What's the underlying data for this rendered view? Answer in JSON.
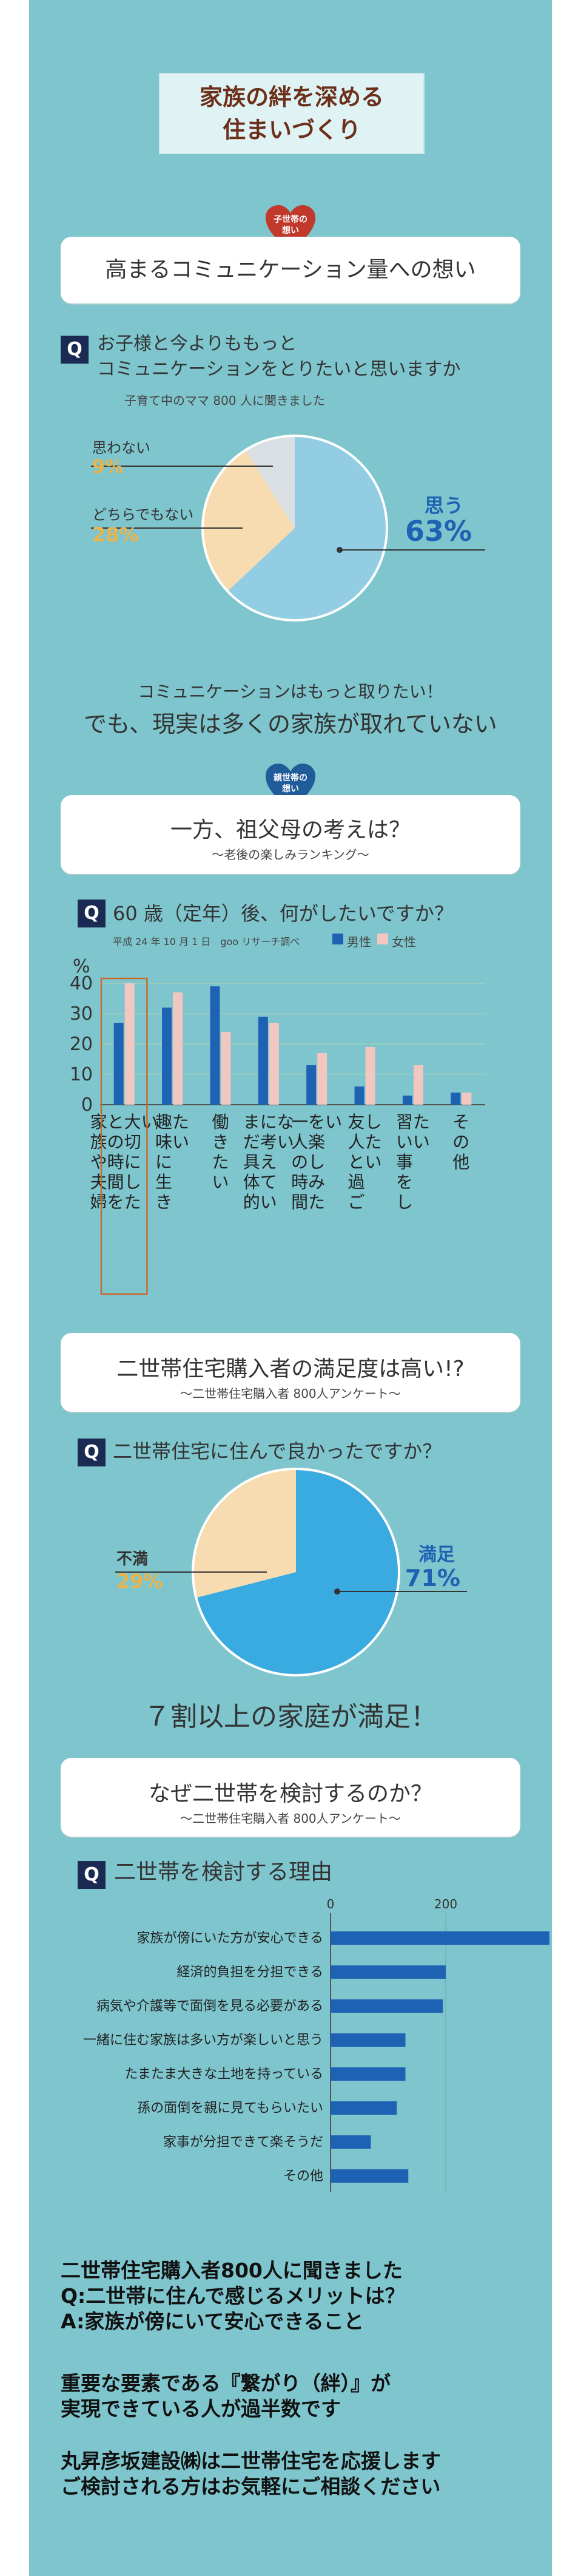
{
  "header": {
    "title_line1": "家族の絆を深める",
    "title_line2": "住まいづくり"
  },
  "colors": {
    "background": "#7ec5cd",
    "heart_red": "#c0392b",
    "heart_blue": "#1f5c99",
    "pie_blue": "#93cde3",
    "pie_peach": "#f6dcb0",
    "pie_gray": "#d9dfe3",
    "pie2_blue": "#3aabe0",
    "bar_blue": "#1e63b3",
    "bar_pink": "#f2c7c2",
    "accent_blue": "#1e63b3",
    "accent_yellow": "#e9b44c"
  },
  "section1": {
    "badge_line1": "子世帯の",
    "badge_line2": "想い",
    "title": "高まるコミュニケーション量への想い",
    "q_icon": "Q",
    "q_line1": "お子様と今よりももっと",
    "q_line2": "コミュニケーションをとりたいと思いますか",
    "note": "子育て中のママ 800 人に聞きました",
    "labels": {
      "no": "思わない",
      "neither": "どちらでもない",
      "yes": "思う"
    },
    "values_text": {
      "no": "9%",
      "neither": "28%",
      "yes": "63%"
    },
    "caption1": "コミュニケーションはもっと取りたい！",
    "caption2": "でも、現実は多くの家族が取れていない"
  },
  "section2": {
    "badge_line1": "親世帯の",
    "badge_line2": "想い",
    "title": "一方、祖父母の考えは？",
    "subtitle": "～老後の楽しみランキング～",
    "q_icon": "Q",
    "question": "60 歳（定年）後、何がしたいですか？",
    "note": "平成 24 年 10 月 1 日　goo リサーチ調べ",
    "legend_male": "男性",
    "legend_female": "女性",
    "y_unit": "%"
  },
  "section3": {
    "title": "二世帯住宅購入者の満足度は高い!?",
    "subtitle": "～二世帯住宅購入者 800人アンケート～",
    "q_icon": "Q",
    "question": "二世帯住宅に住んで良かったですか？",
    "label_unsat": "不満",
    "value_unsat": "29%",
    "label_sat": "満足",
    "value_sat": "71%",
    "caption": "７割以上の家庭が満足！"
  },
  "section4": {
    "title": "なぜ二世帯を検討するのか？",
    "subtitle": "～二世帯住宅購入者 800人アンケート～",
    "q_icon": "Q",
    "question": "二世帯を検討する理由"
  },
  "footer": {
    "line1": "二世帯住宅購入者800人に聞きました",
    "line2": "Q:二世帯に住んで感じるメリットは？",
    "line3": "A:家族が傍にいて安心できること",
    "line4": "重要な要素である『繋がり（絆）』が",
    "line5": "実現できている人が過半数です",
    "line6": "丸昇彦坂建設㈱は二世帯住宅を応援します",
    "line7": "ご検討される方はお気軽にご相談ください"
  },
  "chart_data": [
    {
      "type": "pie",
      "labels": [
        "思う",
        "どちらでもない",
        "思わない"
      ],
      "values": [
        63,
        28,
        9
      ],
      "colors": [
        "#93cde3",
        "#f6dcb0",
        "#d9dfe3"
      ]
    },
    {
      "type": "bar",
      "title": "60 歳（定年）後、何がしたいですか？",
      "categories": [
        "家族や夫婦との時間を大切にしたい",
        "趣味に生きたい",
        "働きたい",
        "まだ具体的に考えていない",
        "一人の時間を楽しみたい",
        "友人と過ごしたい",
        "習い事をしたい",
        "その他"
      ],
      "series": [
        {
          "name": "男性",
          "values": [
            27,
            32,
            39,
            29,
            13,
            6,
            3,
            4
          ]
        },
        {
          "name": "女性",
          "values": [
            40,
            37,
            24,
            27,
            17,
            19,
            13,
            4
          ]
        }
      ],
      "ylabel": "%",
      "ylim": [
        0,
        40
      ],
      "yticks": [
        0,
        10,
        20,
        30,
        40
      ]
    },
    {
      "type": "pie",
      "labels": [
        "満足",
        "不満"
      ],
      "values": [
        71,
        29
      ],
      "colors": [
        "#3aabe0",
        "#f6dcb0"
      ]
    },
    {
      "type": "bar",
      "orientation": "horizontal",
      "title": "二世帯を検討する理由",
      "categories": [
        "家族が傍にいた方が安心できる",
        "経済的負担を分担できる",
        "病気や介護等で面倒を見る必要がある",
        "一緒に住む家族は多い方が楽しいと思う",
        "たまたま大きな土地を持っている",
        "孫の面倒を親に見てもらいたい",
        "家事が分担できて楽そうだ",
        "その他"
      ],
      "values": [
        380,
        200,
        195,
        130,
        130,
        115,
        70,
        135
      ],
      "xticks": [
        0,
        200
      ],
      "xlim": [
        0,
        400
      ]
    }
  ]
}
